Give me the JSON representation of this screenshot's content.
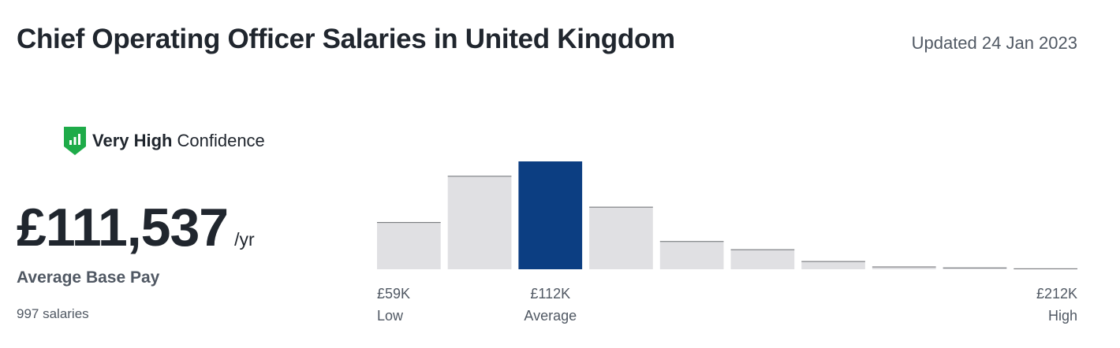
{
  "header": {
    "title": "Chief Operating Officer Salaries in United Kingdom",
    "updated": "Updated 24 Jan 2023"
  },
  "confidence": {
    "level": "Very High",
    "word": "Confidence",
    "icon": "bar-chart-shield-icon",
    "color": "#1eab49"
  },
  "pay": {
    "amount": "£111,537",
    "unit": "/yr",
    "label": "Average Base Pay",
    "salaries": "997 salaries"
  },
  "chart_data": {
    "type": "bar",
    "bins": 10,
    "values": [
      52,
      103,
      119,
      69,
      31,
      22,
      9,
      3,
      2,
      1
    ],
    "highlight_index": 2,
    "colors": {
      "bar": "#e0e0e3",
      "bar_top": "#6b6e72",
      "highlight": "#0c3e82"
    },
    "tick_labels": [
      {
        "value": "£59K",
        "label": "Low",
        "bin": 0,
        "align": "left"
      },
      {
        "value": "£112K",
        "label": "Average",
        "bin": 2,
        "align": "center"
      },
      {
        "value": "£212K",
        "label": "High",
        "bin": 9,
        "align": "right"
      }
    ]
  }
}
